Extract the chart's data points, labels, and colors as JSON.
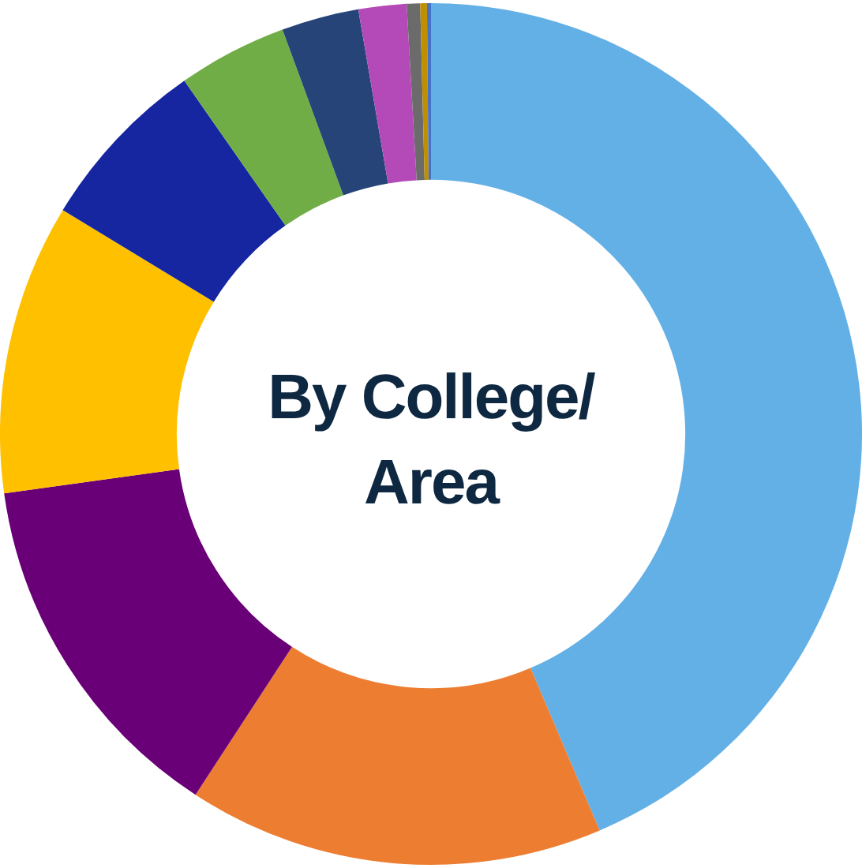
{
  "chart_data": {
    "type": "donut",
    "title": "By College/ Area",
    "categories": [
      null,
      null,
      null,
      null,
      null,
      null,
      null,
      null,
      null,
      null,
      null
    ],
    "values": [
      43.6,
      15.6,
      13.6,
      10.9,
      6.6,
      4.1,
      2.9,
      1.8,
      0.5,
      0.25,
      0.15
    ],
    "colors": [
      "#63b0e6",
      "#ed7d31",
      "#6a0077",
      "#ffc000",
      "#1625a0",
      "#70ad47",
      "#264478",
      "#b44ab8",
      "#6b6b6b",
      "#bf8f00",
      "#4472c4"
    ],
    "legend": false
  }
}
